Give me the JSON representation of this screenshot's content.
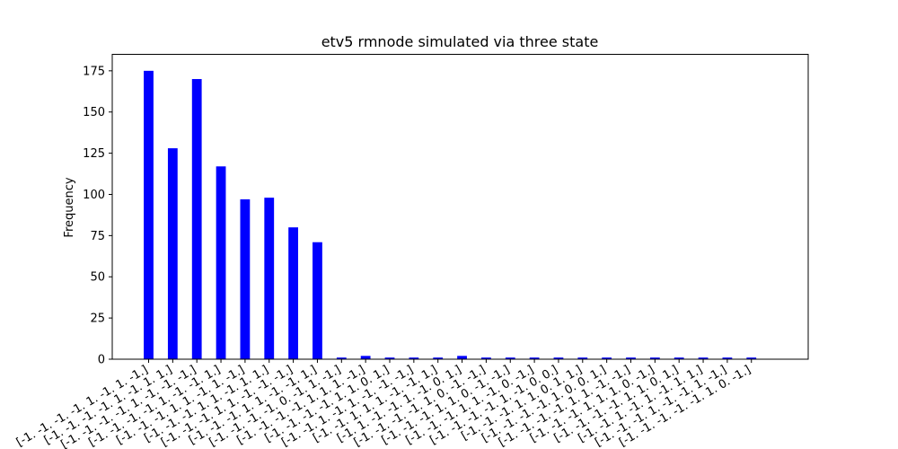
{
  "chart_data": {
    "type": "bar",
    "title": "etv5 rmnode simulated via three state",
    "xlabel": "",
    "ylabel": "Frequency",
    "ylim": [
      0,
      185
    ],
    "yticks": [
      0,
      25,
      50,
      75,
      100,
      125,
      150,
      175
    ],
    "grid": false,
    "bar_color": "#0000ff",
    "categories": [
      "[-1. -1. -1. -1.  1. -1.  1. -1.]",
      "[-1. -1. -1. -1.  1. -1.  1.  1.]",
      "[-1. -1. -1. -1.  1. -1. -1. -1.]",
      "[-1. -1. -1. -1.  1. -1. -1.  1.]",
      "[-1. -1. -1.  1.  1. -1.  1. -1.]",
      "[-1. -1. -1.  1.  1. -1.  1.  1.]",
      "[-1. -1. -1.  1.  1. -1. -1. -1.]",
      "[-1. -1. -1.  1.  1. -1. -1.  1.]",
      "[-1. -1. -1. -1.  0. -1.  1. -1.]",
      "[-1. -1. -1. -1.  1.  1.  1. -1.]",
      "[-1. -1. -1. -1.  1.  1.  0.  1.]",
      "[-1. -1.  1. -1.  1. -1. -1. -1.]",
      "[-1. -1.  1.  1.  1. -1. -1.  1.]",
      "[-1.  1. -1. -1.  1. -1.  0.  1.]",
      "[-1. -1. -1. -1.  1.  0. -1. -1.]",
      "[-1. -1. -1.  1.  1.  0. -1. -1.]",
      "[-1. -1. -1.  1.  1. -1.  0. -1.]",
      "[-1. -1. -1. -1.  1. -1.  0.  0.]",
      "[-1. -1. -1.  1.  1.  0.  1.  1.]",
      "[-1. -1. -1. -1.  1.  0.  0.  1.]",
      "[-1. -1. -1. -1.  1.  1. -1. -1.]",
      "[-1. -1. -1.  1.  1.  1.  0. -1.]",
      "[-1. -1. -1. -1.  1.  1.  0.  1.]",
      "[-1. -1.  1. -1.  1. -1.  1.  1.]",
      "[-1. -1. -1.  1. -1. -1.  1. -1.]",
      "[-1. -1. -1. -1. -1.  1.  0. -1.]"
    ],
    "values": [
      175,
      128,
      170,
      117,
      97,
      98,
      80,
      71,
      1,
      2,
      1,
      1,
      1,
      2,
      1,
      1,
      1,
      1,
      1,
      1,
      1,
      1,
      1,
      1,
      1,
      1
    ]
  }
}
